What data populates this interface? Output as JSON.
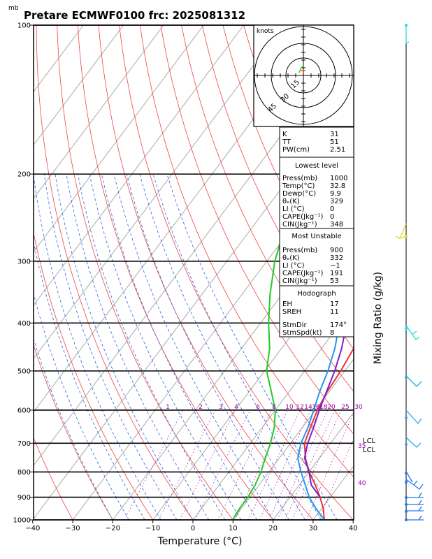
{
  "header": {
    "units": "mb",
    "title": "Pretare ECMWF0100 frc: 2025081312"
  },
  "chart_data": {
    "type": "line",
    "title": "Pretare ECMWF0100 frc: 2025081312",
    "xlabel": "Temperature (°C)",
    "ylabel_right": "Mixing Ratio (g/kg)",
    "xlim": [
      -40,
      40
    ],
    "ylim": [
      1000,
      100
    ],
    "y_scale": "log",
    "x_ticks": [
      -40,
      -30,
      -20,
      -10,
      0,
      10,
      20,
      30,
      40
    ],
    "p_ticks": [
      100,
      200,
      300,
      400,
      500,
      600,
      700,
      800,
      900,
      1000
    ],
    "mixing_ratio_labels": [
      "1",
      "2",
      "3",
      "4",
      "6",
      "8",
      "10",
      "12",
      "14",
      "16",
      "18",
      "20",
      "25",
      "30"
    ],
    "series": [
      {
        "name": "",
        "color": "#ee3333",
        "points": [
          [
            1000,
            32.8
          ],
          [
            950,
            30.5
          ],
          [
            900,
            27.5
          ],
          [
            850,
            24
          ],
          [
            800,
            20
          ],
          [
            750,
            16.5
          ],
          [
            700,
            13.5
          ],
          [
            650,
            12
          ],
          [
            600,
            10.5
          ],
          [
            550,
            9.5
          ],
          [
            500,
            9
          ],
          [
            450,
            8
          ],
          [
            400,
            7.3
          ],
          [
            350,
            7.5
          ],
          [
            300,
            7.5
          ],
          [
            250,
            7.5
          ],
          [
            200,
            7.2
          ],
          [
            150,
            7.8
          ],
          [
            100,
            8
          ]
        ]
      },
      {
        "name": "",
        "color": "#22cc22",
        "points": [
          [
            1000,
            9.9
          ],
          [
            950,
            9.5
          ],
          [
            900,
            9.5
          ],
          [
            850,
            9
          ],
          [
            800,
            8
          ],
          [
            750,
            6.5
          ],
          [
            700,
            5
          ],
          [
            650,
            3
          ],
          [
            600,
            0
          ],
          [
            550,
            -4.5
          ],
          [
            500,
            -9.5
          ],
          [
            450,
            -13
          ],
          [
            400,
            -18
          ],
          [
            350,
            -23
          ],
          [
            300,
            -28
          ],
          [
            250,
            -32.5
          ],
          [
            200,
            -23
          ],
          [
            150,
            -17
          ],
          [
            100,
            -12.5
          ]
        ]
      },
      {
        "name": "",
        "color": "#2299ee",
        "points": [
          [
            1000,
            32.8
          ],
          [
            950,
            28.7
          ],
          [
            900,
            24.8
          ],
          [
            850,
            21.5
          ],
          [
            800,
            18
          ],
          [
            750,
            14.6
          ],
          [
            700,
            12.6
          ],
          [
            650,
            11.4
          ],
          [
            600,
            9.6
          ],
          [
            550,
            7.6
          ],
          [
            500,
            5.8
          ],
          [
            450,
            3.3
          ],
          [
            400,
            -0.3
          ],
          [
            350,
            -4.6
          ],
          [
            300,
            -10
          ],
          [
            250,
            -17.8
          ],
          [
            200,
            -25
          ],
          [
            150,
            -32.6
          ],
          [
            100,
            -42.5
          ]
        ]
      },
      {
        "name": "",
        "color": "#7722cc",
        "points": [
          [
            900,
            27.5
          ],
          [
            850,
            23
          ],
          [
            800,
            20
          ],
          [
            750,
            16.3
          ],
          [
            700,
            14.3
          ],
          [
            650,
            12.8
          ],
          [
            600,
            11
          ],
          [
            550,
            9.3
          ],
          [
            500,
            7.5
          ],
          [
            450,
            5
          ],
          [
            400,
            1.5
          ],
          [
            350,
            -2.5
          ],
          [
            300,
            -8
          ],
          [
            250,
            -14.5
          ],
          [
            200,
            -22
          ],
          [
            150,
            -29.8
          ],
          [
            100,
            -37.8
          ]
        ]
      }
    ]
  },
  "hodograph": {
    "units_label": "knots",
    "ring_labels": [
      "15",
      "30",
      "45"
    ]
  },
  "indices_top": [
    {
      "label": "K",
      "value": "31"
    },
    {
      "label": "TT",
      "value": "51"
    },
    {
      "label": "PW(cm)",
      "value": "2.51"
    }
  ],
  "lowest_level": {
    "heading": "Lowest level",
    "rows": [
      {
        "label": "Press(mb)",
        "value": "1000"
      },
      {
        "label": "Temp(°C)",
        "value": "32.8"
      },
      {
        "label": "Dewp(°C)",
        "value": "9.9"
      },
      {
        "label": "θₑ(K)",
        "value": "329"
      },
      {
        "label": "LI (°C)",
        "value": "0"
      },
      {
        "label": "CAPE(Jkg⁻¹)",
        "value": "0"
      },
      {
        "label": "CIN(Jkg⁻¹)",
        "value": "348"
      }
    ]
  },
  "most_unstable": {
    "heading": "Most Unstable",
    "rows": [
      {
        "label": "Press(mb)",
        "value": "900"
      },
      {
        "label": "θₑ(K)",
        "value": "332"
      },
      {
        "label": "LI (°C)",
        "value": "−1"
      },
      {
        "label": "CAPE(Jkg⁻¹)",
        "value": "191"
      },
      {
        "label": "CIN(Jkg⁻¹)",
        "value": "53"
      }
    ]
  },
  "hodograph_box": {
    "heading": "Hodograph",
    "rows": [
      {
        "label": "EH",
        "value": "17"
      },
      {
        "label": "SREH",
        "value": "11"
      },
      {
        "label": "StmDir",
        "value": "174°"
      },
      {
        "label": "StmSpd(kt)",
        "value": "8"
      }
    ]
  },
  "annotations": {
    "lcl_upper": "LCL",
    "lcl_lower": "LCL",
    "adiabat_35": "35",
    "adiabat_40": "40"
  }
}
